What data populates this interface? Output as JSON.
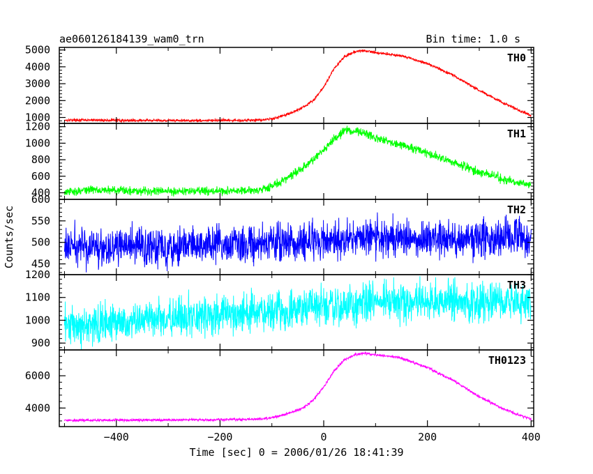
{
  "chart_data": {
    "type": "line",
    "title": "ae060126184139_wam0_trn",
    "subtitle": "Bin time: 1.0 s",
    "xlabel": "Time [sec] 0 = 2006/01/26 18:41:39",
    "ylabel": "Counts/sec",
    "xlim": [
      -510,
      405
    ],
    "x_ticks": [
      -400,
      -200,
      0,
      200,
      400
    ],
    "x_tick_labels": [
      "−400",
      "−200",
      "0",
      "200",
      "400"
    ],
    "grid": false,
    "legend": "none",
    "panels": [
      {
        "name": "TH0",
        "color": "#ff0000",
        "ylim": [
          650,
          5150
        ],
        "yticks": [
          1000,
          2000,
          3000,
          4000,
          5000
        ],
        "ytick_labels": [
          "1000",
          "2000",
          "3000",
          "4000",
          "5000"
        ],
        "noise": 40,
        "x": [
          -500,
          -400,
          -300,
          -200,
          -150,
          -120,
          -100,
          -80,
          -60,
          -40,
          -20,
          0,
          20,
          40,
          60,
          80,
          100,
          150,
          200,
          250,
          300,
          350,
          400
        ],
        "y": [
          850,
          830,
          820,
          820,
          830,
          860,
          920,
          1100,
          1300,
          1600,
          2000,
          2800,
          3900,
          4600,
          4900,
          4950,
          4850,
          4650,
          4200,
          3500,
          2600,
          1800,
          1100
        ]
      },
      {
        "name": "TH1",
        "color": "#00ff00",
        "ylim": [
          320,
          1240
        ],
        "yticks": [
          400,
          600,
          800,
          1000,
          1200
        ],
        "ytick_labels": [
          "400",
          "600",
          "800",
          "1000",
          "1200"
        ],
        "noise": 25,
        "x": [
          -500,
          -450,
          -400,
          -300,
          -200,
          -150,
          -120,
          -100,
          -80,
          -60,
          -40,
          -20,
          0,
          20,
          40,
          60,
          80,
          100,
          150,
          200,
          250,
          300,
          350,
          400
        ],
        "y": [
          400,
          440,
          430,
          420,
          420,
          420,
          440,
          480,
          540,
          620,
          700,
          800,
          920,
          1060,
          1150,
          1150,
          1120,
          1060,
          980,
          880,
          760,
          650,
          560,
          480
        ]
      },
      {
        "name": "TH2",
        "color": "#0000ff",
        "ylim": [
          425,
          600
        ],
        "yticks": [
          450,
          500,
          550,
          600
        ],
        "ytick_labels": [
          "450",
          "500",
          "550",
          "600"
        ],
        "noise": 22,
        "x": [
          -500,
          -400,
          -300,
          -200,
          -100,
          0,
          100,
          200,
          300,
          400
        ],
        "y": [
          490,
          490,
          492,
          495,
          498,
          503,
          512,
          510,
          508,
          510
        ]
      },
      {
        "name": "TH3",
        "color": "#00ffff",
        "ylim": [
          870,
          1200
        ],
        "yticks": [
          900,
          1000,
          1100,
          1200
        ],
        "ytick_labels": [
          "900",
          "1000",
          "1100",
          "1200"
        ],
        "noise": 42,
        "x": [
          -500,
          -400,
          -300,
          -200,
          -100,
          0,
          100,
          200,
          300,
          400
        ],
        "y": [
          970,
          990,
          1010,
          1025,
          1040,
          1060,
          1080,
          1085,
          1080,
          1075
        ]
      },
      {
        "name": "TH0123",
        "color": "#ff00ff",
        "ylim": [
          2850,
          7600
        ],
        "yticks": [
          4000,
          6000
        ],
        "ytick_labels": [
          "4000",
          "6000"
        ],
        "noise": 40,
        "x": [
          -500,
          -400,
          -300,
          -200,
          -150,
          -120,
          -100,
          -80,
          -60,
          -40,
          -20,
          0,
          20,
          40,
          60,
          80,
          100,
          150,
          200,
          250,
          300,
          350,
          400
        ],
        "y": [
          3250,
          3250,
          3260,
          3280,
          3300,
          3330,
          3400,
          3550,
          3750,
          4000,
          4500,
          5300,
          6300,
          7000,
          7300,
          7400,
          7300,
          7100,
          6500,
          5700,
          4700,
          3900,
          3300
        ]
      }
    ]
  }
}
